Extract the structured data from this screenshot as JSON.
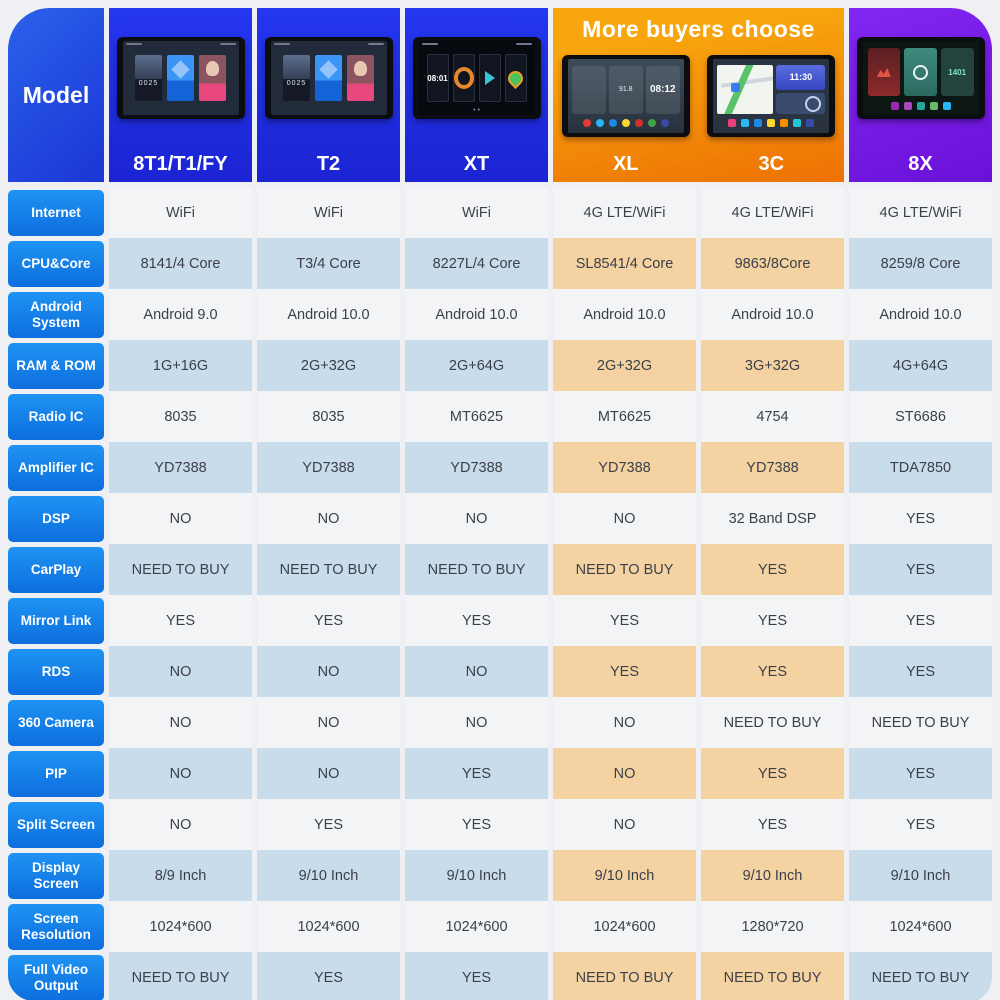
{
  "header": {
    "model_label": "Model",
    "banner": "More buyers choose",
    "models": [
      {
        "name": "8T1/T1/FY",
        "screen_time": "0025"
      },
      {
        "name": "T2",
        "screen_time": "0025"
      },
      {
        "name": "XT",
        "screen_time": "08:01"
      },
      {
        "name": "XL",
        "screen_time": "08:12",
        "radio_freq": "91.8"
      },
      {
        "name": "3C",
        "screen_time": "11:30"
      },
      {
        "name": "8X",
        "screen_time": "1401"
      }
    ]
  },
  "colors": {
    "label_blue": "#1286ea",
    "header_blue": "#1f2de0",
    "header_orange": "#f28708",
    "header_purple": "#7a1ee8",
    "row_white": "#f3f4f6",
    "row_blue": "#c9dcec",
    "row_tan": "#f5d2a2"
  },
  "rows": [
    {
      "label": "Internet",
      "values": [
        "WiFi",
        "WiFi",
        "WiFi",
        "4G LTE/WiFi",
        "4G LTE/WiFi",
        "4G LTE/WiFi"
      ]
    },
    {
      "label": "CPU&Core",
      "values": [
        "8141/4 Core",
        "T3/4 Core",
        "8227L/4 Core",
        "SL8541/4 Core",
        "9863/8Core",
        "8259/8 Core"
      ]
    },
    {
      "label": "Android System",
      "values": [
        "Android 9.0",
        "Android 10.0",
        "Android 10.0",
        "Android 10.0",
        "Android 10.0",
        "Android 10.0"
      ]
    },
    {
      "label": "RAM & ROM",
      "values": [
        "1G+16G",
        "2G+32G",
        "2G+64G",
        "2G+32G",
        "3G+32G",
        "4G+64G"
      ]
    },
    {
      "label": "Radio IC",
      "values": [
        "8035",
        "8035",
        "MT6625",
        "MT6625",
        "4754",
        "ST6686"
      ]
    },
    {
      "label": "Amplifier IC",
      "values": [
        "YD7388",
        "YD7388",
        "YD7388",
        "YD7388",
        "YD7388",
        "TDA7850"
      ]
    },
    {
      "label": "DSP",
      "values": [
        "NO",
        "NO",
        "NO",
        "NO",
        "32 Band DSP",
        "YES"
      ]
    },
    {
      "label": "CarPlay",
      "values": [
        "NEED TO BUY",
        "NEED TO BUY",
        "NEED TO BUY",
        "NEED TO BUY",
        "YES",
        "YES"
      ]
    },
    {
      "label": "Mirror Link",
      "values": [
        "YES",
        "YES",
        "YES",
        "YES",
        "YES",
        "YES"
      ]
    },
    {
      "label": "RDS",
      "values": [
        "NO",
        "NO",
        "NO",
        "YES",
        "YES",
        "YES"
      ]
    },
    {
      "label": "360 Camera",
      "values": [
        "NO",
        "NO",
        "NO",
        "NO",
        "NEED TO BUY",
        "NEED TO BUY"
      ]
    },
    {
      "label": "PIP",
      "values": [
        "NO",
        "NO",
        "YES",
        "NO",
        "YES",
        "YES"
      ]
    },
    {
      "label": "Split Screen",
      "values": [
        "NO",
        "YES",
        "YES",
        "NO",
        "YES",
        "YES"
      ]
    },
    {
      "label": "Display Screen",
      "values": [
        "8/9 Inch",
        "9/10 Inch",
        "9/10 Inch",
        "9/10 Inch",
        "9/10 Inch",
        "9/10 Inch"
      ]
    },
    {
      "label": "Screen Resolution",
      "values": [
        "1024*600",
        "1024*600",
        "1024*600",
        "1024*600",
        "1280*720",
        "1024*600"
      ]
    },
    {
      "label": "Full Video Output",
      "values": [
        "NEED TO BUY",
        "YES",
        "YES",
        "NEED TO BUY",
        "NEED TO BUY",
        "NEED TO BUY"
      ]
    }
  ]
}
